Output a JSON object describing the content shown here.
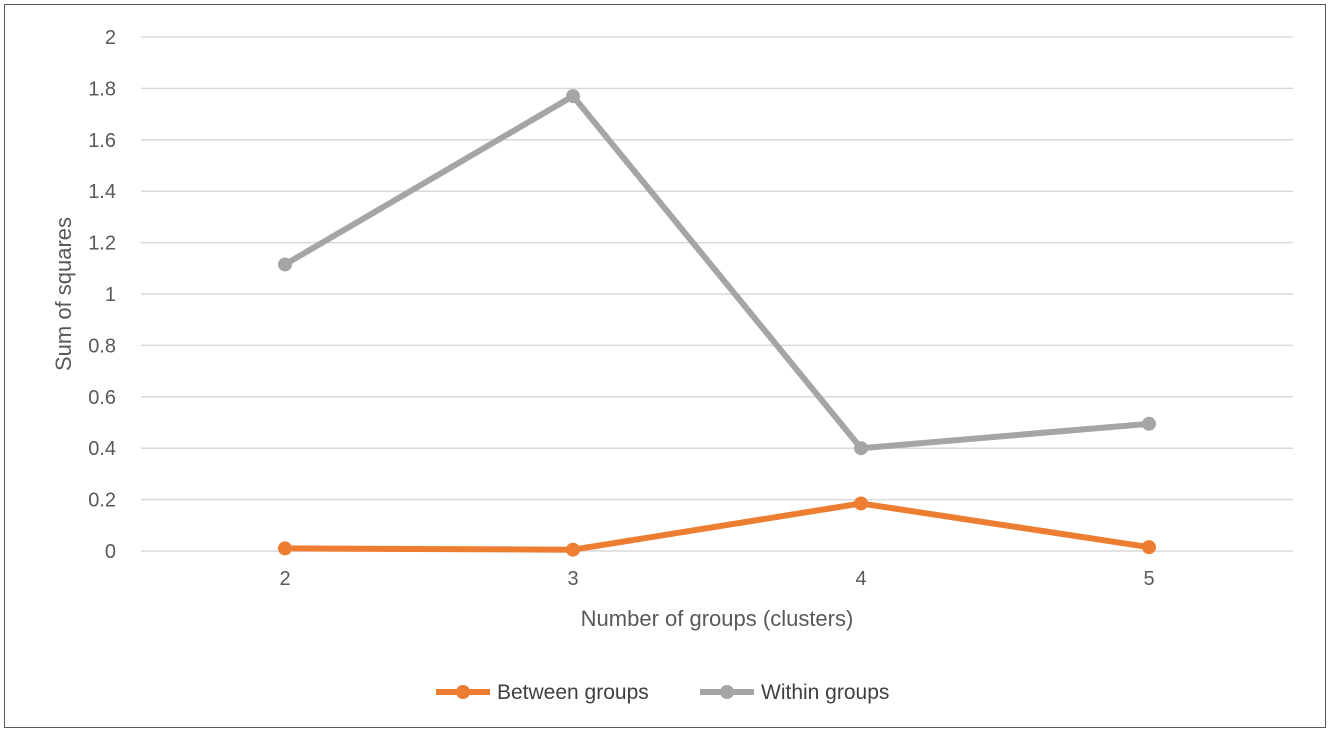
{
  "chart_data": {
    "type": "line",
    "title": "",
    "xlabel": "Number of groups (clusters)",
    "ylabel": "Sum of squares",
    "categories": [
      "2",
      "3",
      "4",
      "5"
    ],
    "ylim": [
      0,
      2
    ],
    "yticks": [
      "0",
      "0.2",
      "0.4",
      "0.6",
      "0.8",
      "1",
      "1.2",
      "1.4",
      "1.6",
      "1.8",
      "2"
    ],
    "grid": "horizontal",
    "legend_position": "bottom",
    "series": [
      {
        "name": "Between groups",
        "color": "#ED7D31",
        "values": [
          0.01,
          0.005,
          0.185,
          0.015
        ]
      },
      {
        "name": "Within groups",
        "color": "#A5A5A5",
        "values": [
          1.115,
          1.77,
          0.4,
          0.495
        ]
      }
    ]
  }
}
